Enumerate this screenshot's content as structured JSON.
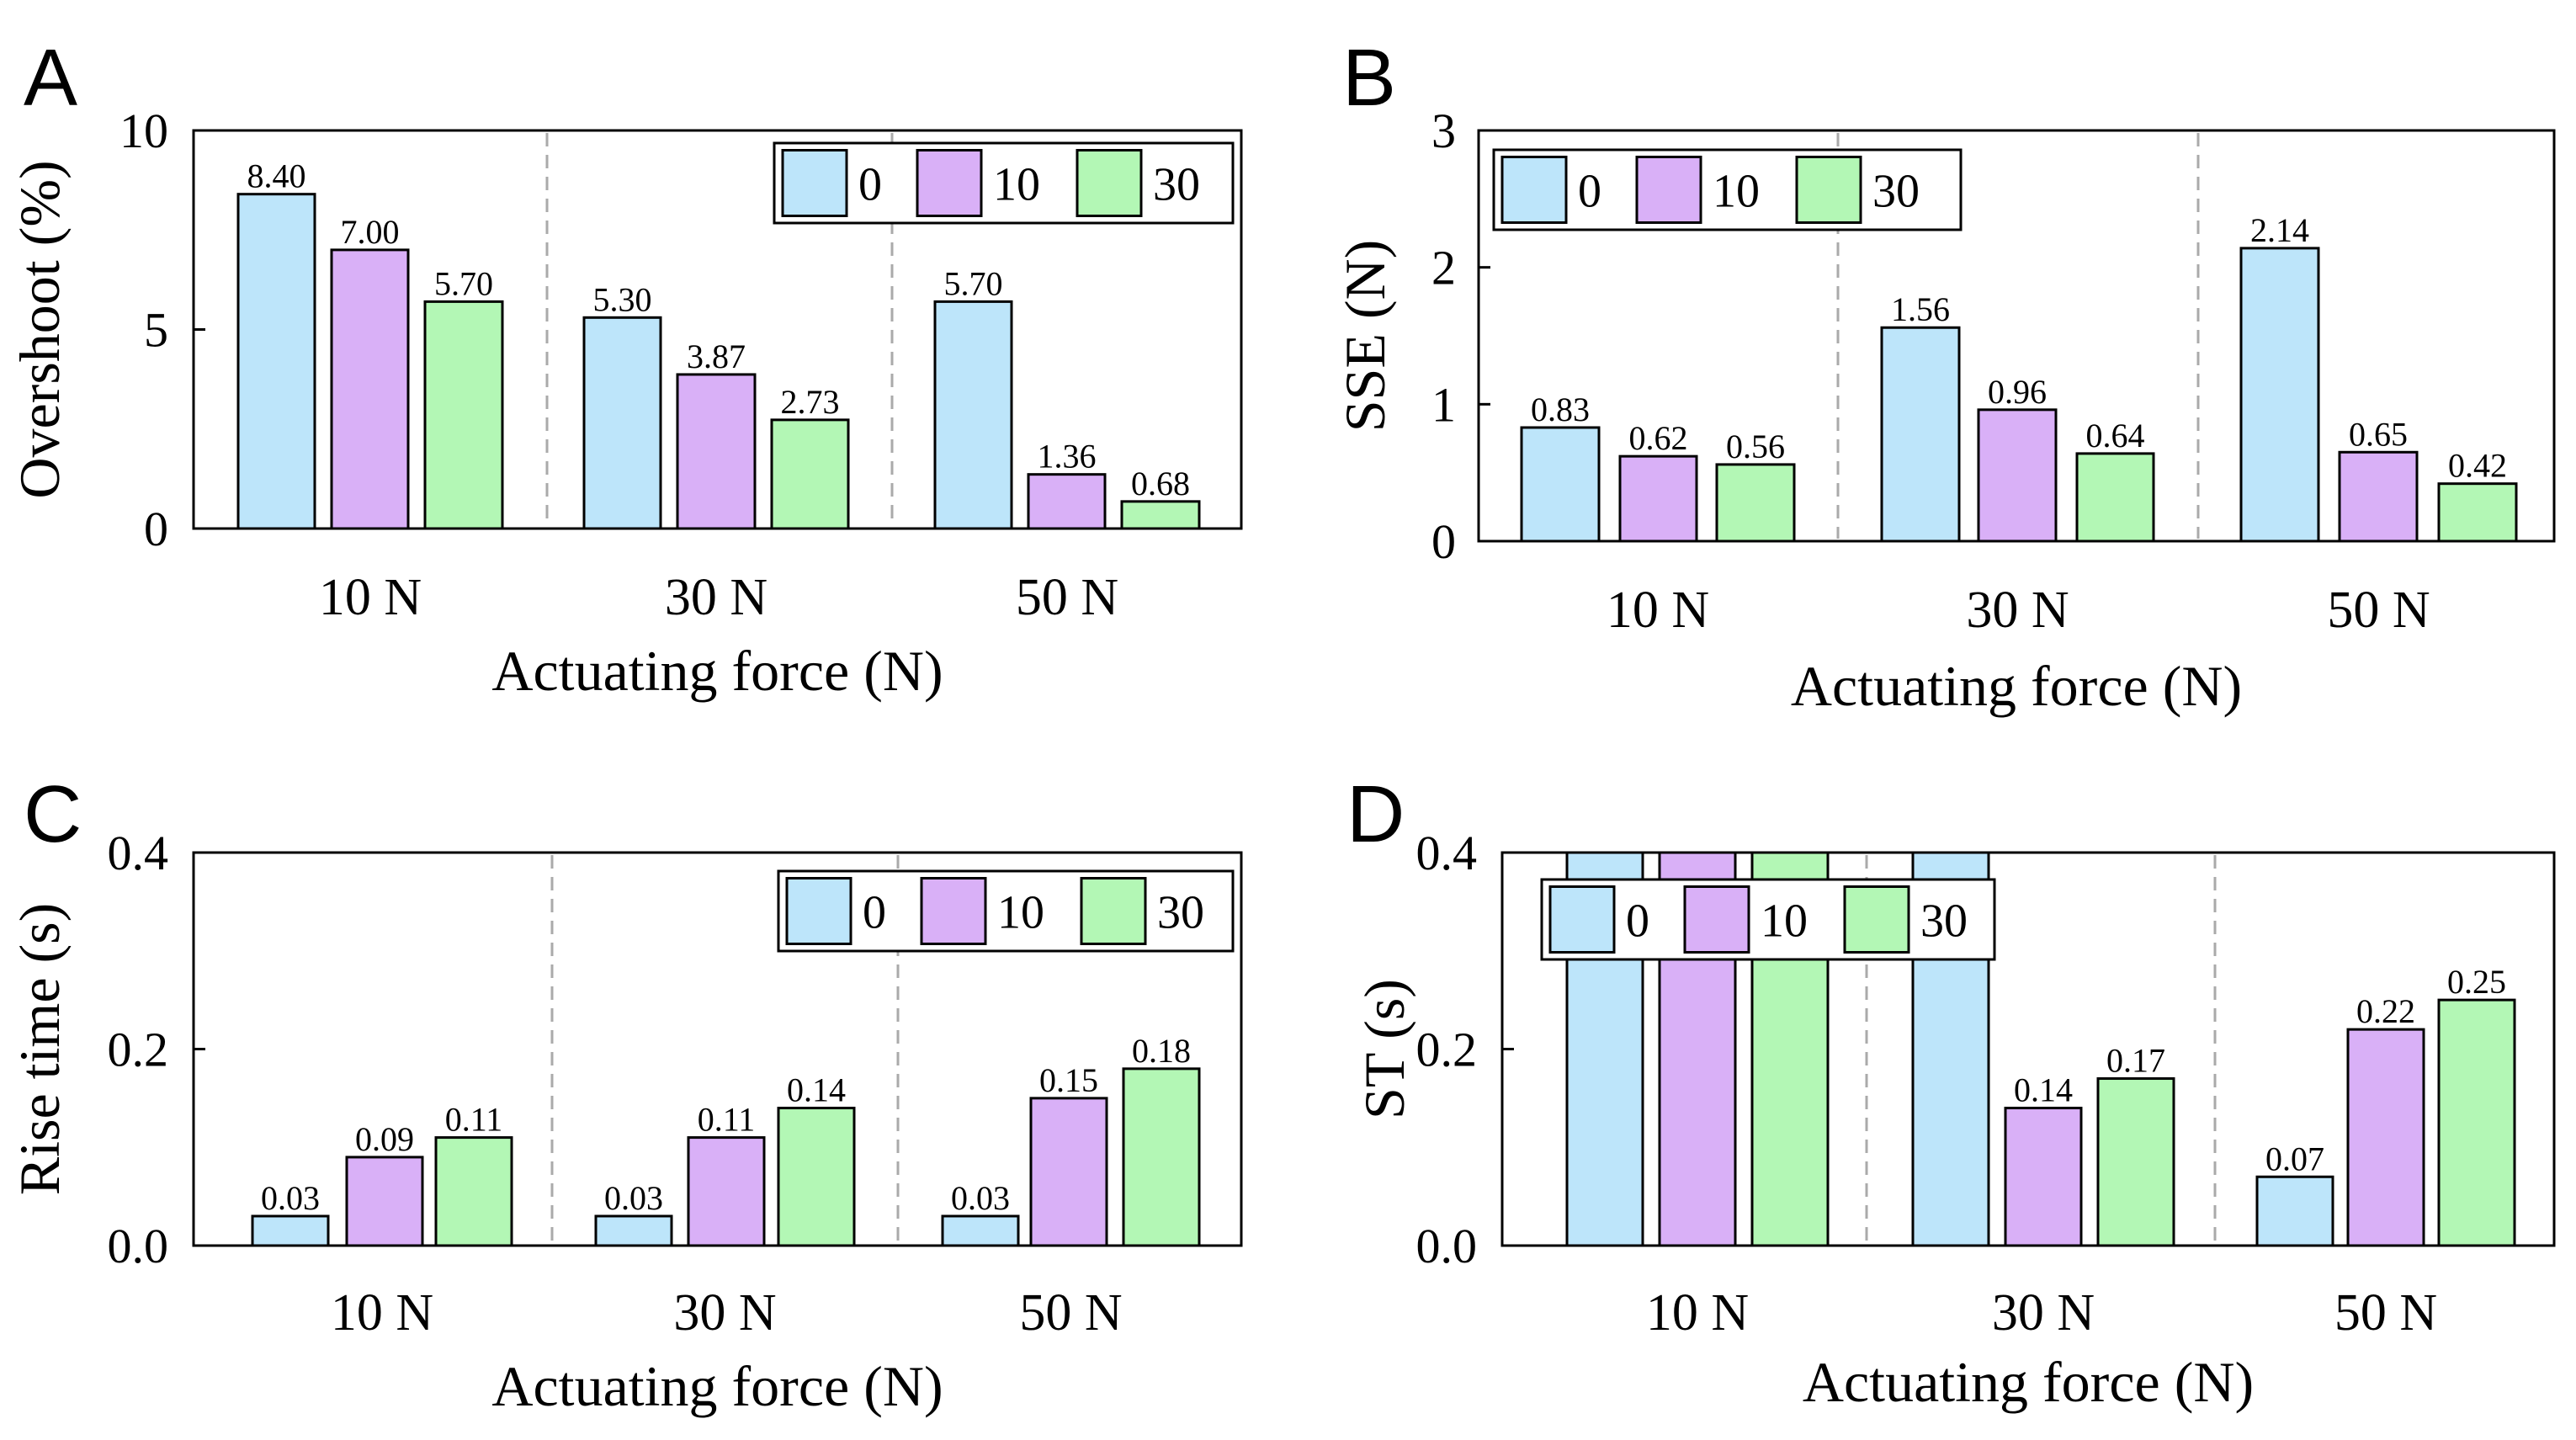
{
  "colors": {
    "s0": "#bde5fa",
    "s10": "#d9b0f7",
    "s30": "#b3f7b5",
    "divider": "#aaaaaa"
  },
  "chart_data": [
    {
      "panel": "A",
      "type": "bar",
      "categories": [
        "10 N",
        "30 N",
        "50 N"
      ],
      "series": [
        {
          "name": "0",
          "values": [
            8.4,
            5.3,
            5.7
          ],
          "labels": [
            "8.40",
            "5.30",
            "5.70"
          ]
        },
        {
          "name": "10",
          "values": [
            7.0,
            3.87,
            1.36
          ],
          "labels": [
            "7.00",
            "3.87",
            "1.36"
          ]
        },
        {
          "name": "30",
          "values": [
            5.7,
            2.73,
            0.68
          ],
          "labels": [
            "5.70",
            "2.73",
            "0.68"
          ]
        }
      ],
      "xlabel": "Actuating force (N)",
      "ylabel": "Overshoot (%)",
      "ylim": [
        0,
        10
      ],
      "yticks": [
        0,
        5,
        10
      ],
      "ytick_labels": [
        "0",
        "5",
        "10"
      ],
      "legend": "top-right"
    },
    {
      "panel": "B",
      "type": "bar",
      "categories": [
        "10 N",
        "30 N",
        "50 N"
      ],
      "series": [
        {
          "name": "0",
          "values": [
            0.83,
            1.56,
            2.14
          ],
          "labels": [
            "0.83",
            "1.56",
            "2.14"
          ]
        },
        {
          "name": "10",
          "values": [
            0.62,
            0.96,
            0.65
          ],
          "labels": [
            "0.62",
            "0.96",
            "0.65"
          ]
        },
        {
          "name": "30",
          "values": [
            0.56,
            0.64,
            0.42
          ],
          "labels": [
            "0.56",
            "0.64",
            "0.42"
          ]
        }
      ],
      "xlabel": "Actuating force (N)",
      "ylabel": "SSE (N)",
      "ylim": [
        0,
        3
      ],
      "yticks": [
        0,
        1,
        2,
        3
      ],
      "ytick_labels": [
        "0",
        "1",
        "2",
        "3"
      ],
      "legend": "top-left"
    },
    {
      "panel": "C",
      "type": "bar",
      "categories": [
        "10 N",
        "30 N",
        "50 N"
      ],
      "series": [
        {
          "name": "0",
          "values": [
            0.03,
            0.03,
            0.03
          ],
          "labels": [
            "0.03",
            "0.03",
            "0.03"
          ]
        },
        {
          "name": "10",
          "values": [
            0.09,
            0.11,
            0.15
          ],
          "labels": [
            "0.09",
            "0.11",
            "0.15"
          ]
        },
        {
          "name": "30",
          "values": [
            0.11,
            0.14,
            0.18
          ],
          "labels": [
            "0.11",
            "0.14",
            "0.18"
          ]
        }
      ],
      "xlabel": "Actuating force (N)",
      "ylabel": "Rise time (s)",
      "ylim": [
        0,
        0.4
      ],
      "yticks": [
        0,
        0.2,
        0.4
      ],
      "ytick_labels": [
        "0.0",
        "0.2",
        "0.4"
      ],
      "legend": "top-right"
    },
    {
      "panel": "D",
      "type": "bar",
      "categories": [
        "10 N",
        "30 N",
        "50 N"
      ],
      "series": [
        {
          "name": "0",
          "values": [
            0.4,
            0.4,
            0.07
          ],
          "labels": [
            "",
            "",
            "0.07"
          ]
        },
        {
          "name": "10",
          "values": [
            0.4,
            0.14,
            0.22
          ],
          "labels": [
            "",
            "0.14",
            "0.22"
          ]
        },
        {
          "name": "30",
          "values": [
            0.4,
            0.17,
            0.25
          ],
          "labels": [
            "",
            "0.17",
            "0.25"
          ]
        }
      ],
      "xlabel": "Actuating force (N)",
      "ylabel": "ST (s)",
      "ylim": [
        0,
        0.4
      ],
      "yticks": [
        0,
        0.2,
        0.4
      ],
      "ytick_labels": [
        "0.0",
        "0.2",
        "0.4"
      ],
      "legend": "top-left"
    }
  ]
}
